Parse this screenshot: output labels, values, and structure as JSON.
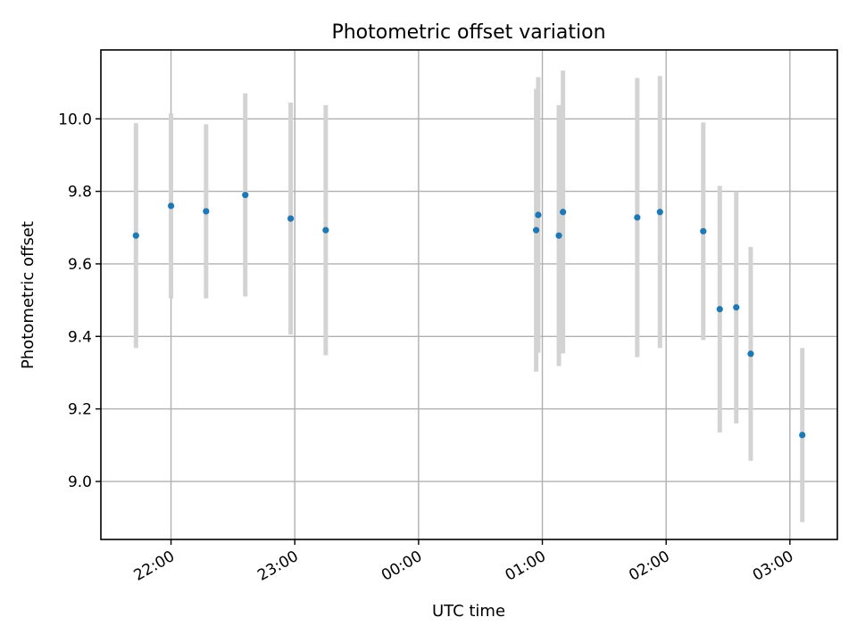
{
  "chart_data": {
    "type": "scatter",
    "title": "Photometric offset variation",
    "xlabel": "UTC time",
    "ylabel": "Photometric offset",
    "x_is_time": true,
    "x_reference_day_note": "times after 24:00 continue into next day",
    "xlim": [
      "21:26",
      "03:23"
    ],
    "ylim": [
      8.84,
      10.19
    ],
    "x_ticks": [
      "22:00",
      "23:00",
      "00:00",
      "01:00",
      "02:00",
      "03:00"
    ],
    "y_ticks": [
      "9.0",
      "9.2",
      "9.4",
      "9.6",
      "9.8",
      "10.0"
    ],
    "grid": true,
    "point_color": "#1f77b4",
    "errorbar_color": "#d3d3d3",
    "series": [
      {
        "points": [
          {
            "x": "21:43",
            "y": 9.678,
            "err": 0.31
          },
          {
            "x": "22:00",
            "y": 9.76,
            "err": 0.255
          },
          {
            "x": "22:17",
            "y": 9.745,
            "err": 0.24
          },
          {
            "x": "22:36",
            "y": 9.79,
            "err": 0.28
          },
          {
            "x": "22:58",
            "y": 9.725,
            "err": 0.32
          },
          {
            "x": "23:15",
            "y": 9.693,
            "err": 0.345
          },
          {
            "x": "00:57",
            "y": 9.693,
            "err": 0.39
          },
          {
            "x": "00:58",
            "y": 9.735,
            "err": 0.38
          },
          {
            "x": "01:08",
            "y": 9.678,
            "err": 0.36
          },
          {
            "x": "01:10",
            "y": 9.743,
            "err": 0.39
          },
          {
            "x": "01:46",
            "y": 9.728,
            "err": 0.385
          },
          {
            "x": "01:57",
            "y": 9.743,
            "err": 0.375
          },
          {
            "x": "02:18",
            "y": 9.69,
            "err": 0.3
          },
          {
            "x": "02:26",
            "y": 9.475,
            "err": 0.34
          },
          {
            "x": "02:34",
            "y": 9.48,
            "err": 0.32
          },
          {
            "x": "02:41",
            "y": 9.352,
            "err": 0.295
          },
          {
            "x": "03:06",
            "y": 9.128,
            "err": 0.24
          }
        ]
      }
    ]
  }
}
